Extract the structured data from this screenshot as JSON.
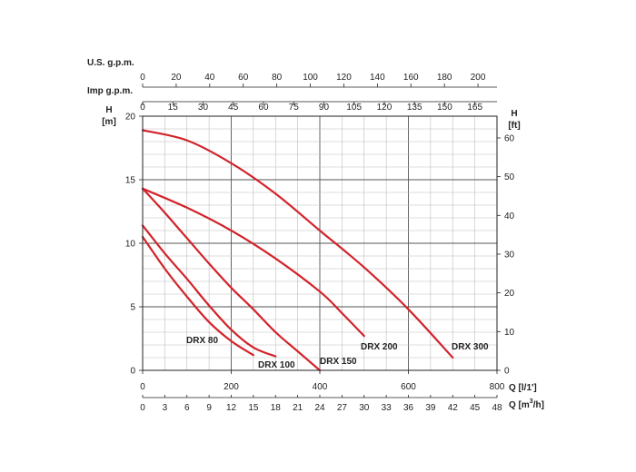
{
  "chart_data": {
    "type": "line",
    "title": "",
    "curve_color": "#d2232a",
    "grid": true,
    "axes": {
      "x_bottom": {
        "label": "Q [l/1']",
        "range": [
          0,
          800
        ],
        "ticks": [
          0,
          200,
          400,
          600,
          800
        ]
      },
      "x_bottom2": {
        "label": "Q [m³/h]",
        "label_main": "Q [m",
        "label_sup": "3",
        "label_tail": "/h]",
        "ticks": [
          0,
          3,
          6,
          9,
          12,
          15,
          18,
          21,
          24,
          27,
          30,
          33,
          36,
          39,
          42,
          45,
          48
        ]
      },
      "x_top_imp": {
        "label": "Imp g.p.m.",
        "ticks": [
          0,
          15,
          30,
          45,
          60,
          75,
          90,
          105,
          120,
          135,
          150,
          165
        ]
      },
      "x_top_us": {
        "label": "U.S. g.p.m.",
        "ticks": [
          0,
          20,
          40,
          60,
          80,
          100,
          120,
          140,
          160,
          180,
          200
        ]
      },
      "y_left": {
        "label_line1": "H",
        "label_line2": "[m]",
        "range": [
          0,
          20
        ],
        "ticks": [
          0,
          5,
          10,
          15,
          20
        ]
      },
      "y_right": {
        "label_line1": "H",
        "label_line2": "[ft]",
        "ticks": [
          0,
          10,
          20,
          30,
          40,
          50,
          60
        ]
      }
    },
    "series": [
      {
        "name": "DRX 80",
        "points": [
          [
            0,
            10.5
          ],
          [
            50,
            8.0
          ],
          [
            100,
            5.8
          ],
          [
            150,
            3.8
          ],
          [
            200,
            2.3
          ],
          [
            250,
            1.2
          ]
        ]
      },
      {
        "name": "DRX 100",
        "points": [
          [
            0,
            11.4
          ],
          [
            50,
            9.2
          ],
          [
            100,
            7.2
          ],
          [
            150,
            5.1
          ],
          [
            200,
            3.2
          ],
          [
            250,
            1.8
          ],
          [
            300,
            1.1
          ]
        ]
      },
      {
        "name": "DRX 150",
        "points": [
          [
            0,
            14.3
          ],
          [
            50,
            12.4
          ],
          [
            100,
            10.4
          ],
          [
            150,
            8.4
          ],
          [
            200,
            6.5
          ],
          [
            250,
            4.8
          ],
          [
            300,
            3.0
          ],
          [
            350,
            1.5
          ],
          [
            400,
            0.0
          ]
        ]
      },
      {
        "name": "DRX 200",
        "points": [
          [
            0,
            14.3
          ],
          [
            100,
            12.8
          ],
          [
            200,
            11.0
          ],
          [
            300,
            8.8
          ],
          [
            400,
            6.2
          ],
          [
            450,
            4.5
          ],
          [
            500,
            2.7
          ]
        ]
      },
      {
        "name": "DRX 300",
        "points": [
          [
            0,
            18.9
          ],
          [
            100,
            18.1
          ],
          [
            200,
            16.3
          ],
          [
            300,
            13.9
          ],
          [
            400,
            11.0
          ],
          [
            500,
            8.1
          ],
          [
            600,
            4.8
          ],
          [
            700,
            1.0
          ]
        ]
      }
    ]
  }
}
